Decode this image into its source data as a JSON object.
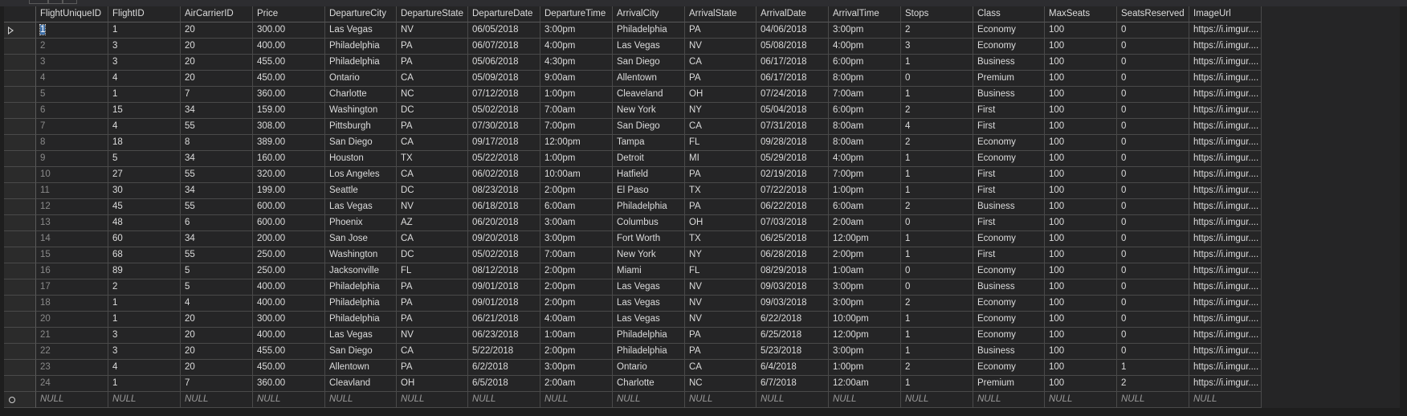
{
  "columns": [
    "FlightUniqueID",
    "FlightID",
    "AirCarrierID",
    "Price",
    "DepartureCity",
    "DepartureState",
    "DepartureDate",
    "DepartureTime",
    "ArrivalCity",
    "ArrivalState",
    "ArrivalDate",
    "ArrivalTime",
    "Stops",
    "Class",
    "MaxSeats",
    "SeatsReserved",
    "ImageUrl"
  ],
  "rows": [
    [
      "1",
      "1",
      "20",
      "300.00",
      "Las Vegas",
      "NV",
      "06/05/2018",
      "3:00pm",
      "Philadelphia",
      "PA",
      "04/06/2018",
      "3:00pm",
      "2",
      "Economy",
      "100",
      "0",
      "https://i.imgur...."
    ],
    [
      "2",
      "3",
      "20",
      "400.00",
      "Philadelphia",
      "PA",
      "06/07/2018",
      "4:00pm",
      "Las Vegas",
      "NV",
      "05/08/2018",
      "4:00pm",
      "3",
      "Economy",
      "100",
      "0",
      "https://i.imgur...."
    ],
    [
      "3",
      "3",
      "20",
      "455.00",
      "Philadelphia",
      "PA",
      "05/06/2018",
      "4:30pm",
      "San Diego",
      "CA",
      "06/17/2018",
      "6:00pm",
      "1",
      "Business",
      "100",
      "0",
      "https://i.imgur...."
    ],
    [
      "4",
      "4",
      "20",
      "450.00",
      "Ontario",
      "CA",
      "05/09/2018",
      "9:00am",
      "Allentown",
      "PA",
      "06/17/2018",
      "8:00pm",
      "0",
      "Premium",
      "100",
      "0",
      "https://i.imgur...."
    ],
    [
      "5",
      "1",
      "7",
      "360.00",
      "Charlotte",
      "NC",
      "07/12/2018",
      "1:00pm",
      "Cleaveland",
      "OH",
      "07/24/2018",
      "7:00am",
      "1",
      "Business",
      "100",
      "0",
      "https://i.imgur...."
    ],
    [
      "6",
      "15",
      "34",
      "159.00",
      "Washington",
      "DC",
      "05/02/2018",
      "7:00am",
      "New York",
      "NY",
      "05/04/2018",
      "6:00pm",
      "2",
      "First",
      "100",
      "0",
      "https://i.imgur...."
    ],
    [
      "7",
      "4",
      "55",
      "308.00",
      "Pittsburgh",
      "PA",
      "07/30/2018",
      "7:00pm",
      "San Diego",
      "CA",
      "07/31/2018",
      "8:00am",
      "4",
      "First",
      "100",
      "0",
      "https://i.imgur...."
    ],
    [
      "8",
      "18",
      "8",
      "389.00",
      "San Diego",
      "CA",
      "09/17/2018",
      "12:00pm",
      "Tampa",
      "FL",
      "09/28/2018",
      "8:00am",
      "2",
      "Economy",
      "100",
      "0",
      "https://i.imgur...."
    ],
    [
      "9",
      "5",
      "34",
      "160.00",
      "Houston",
      "TX",
      "05/22/2018",
      "1:00pm",
      "Detroit",
      "MI",
      "05/29/2018",
      "4:00pm",
      "1",
      "Economy",
      "100",
      "0",
      "https://i.imgur...."
    ],
    [
      "10",
      "27",
      "55",
      "320.00",
      "Los Angeles",
      "CA",
      "06/02/2018",
      "10:00am",
      "Hatfield",
      "PA",
      "02/19/2018",
      "7:00pm",
      "1",
      "First",
      "100",
      "0",
      "https://i.imgur...."
    ],
    [
      "11",
      "30",
      "34",
      "199.00",
      "Seattle",
      "DC",
      "08/23/2018",
      "2:00pm",
      "El Paso",
      "TX",
      "07/22/2018",
      "1:00pm",
      "1",
      "First",
      "100",
      "0",
      "https://i.imgur...."
    ],
    [
      "12",
      "45",
      "55",
      "600.00",
      "Las Vegas",
      "NV",
      "06/18/2018",
      "6:00am",
      "Philadelphia",
      "PA",
      "06/22/2018",
      "6:00am",
      "2",
      "Business",
      "100",
      "0",
      "https://i.imgur...."
    ],
    [
      "13",
      "48",
      "6",
      "600.00",
      "Phoenix",
      "AZ",
      "06/20/2018",
      "3:00am",
      "Columbus",
      "OH",
      "07/03/2018",
      "2:00am",
      "0",
      "First",
      "100",
      "0",
      "https://i.imgur...."
    ],
    [
      "14",
      "60",
      "34",
      "200.00",
      "San Jose",
      "CA",
      "09/20/2018",
      "3:00pm",
      "Fort Worth",
      "TX",
      "06/25/2018",
      "12:00pm",
      "1",
      "Economy",
      "100",
      "0",
      "https://i.imgur...."
    ],
    [
      "15",
      "68",
      "55",
      "250.00",
      "Washington",
      "DC",
      "05/02/2018",
      "7:00am",
      "New York",
      "NY",
      "06/28/2018",
      "2:00pm",
      "1",
      "First",
      "100",
      "0",
      "https://i.imgur...."
    ],
    [
      "16",
      "89",
      "5",
      "250.00",
      "Jacksonville",
      "FL",
      "08/12/2018",
      "2:00pm",
      "Miami",
      "FL",
      "08/29/2018",
      "1:00am",
      "0",
      "Economy",
      "100",
      "0",
      "https://i.imgur...."
    ],
    [
      "17",
      "2",
      "5",
      "400.00",
      "Philadelphia",
      "PA",
      "09/01/2018",
      "2:00pm",
      "Las Vegas",
      "NV",
      "09/03/2018",
      "3:00pm",
      "0",
      "Business",
      "100",
      "0",
      "https://i.imgur...."
    ],
    [
      "18",
      "1",
      "4",
      "400.00",
      "Philadelphia",
      "PA",
      "09/01/2018",
      "2:00pm",
      "Las Vegas",
      "NV",
      "09/03/2018",
      "3:00pm",
      "2",
      "Economy",
      "100",
      "0",
      "https://i.imgur...."
    ],
    [
      "20",
      "1",
      "20",
      "300.00",
      "Philadelphia",
      "PA",
      "06/21/2018",
      "4:00am",
      "Las Vegas",
      "NV",
      "6/22/2018",
      "10:00pm",
      "1",
      "Economy",
      "100",
      "0",
      "https://i.imgur...."
    ],
    [
      "21",
      "3",
      "20",
      "400.00",
      "Las Vegas",
      "NV",
      "06/23/2018",
      "1:00am",
      "Philadelphia",
      "PA",
      "6/25/2018",
      "12:00pm",
      "1",
      "Economy",
      "100",
      "0",
      "https://i.imgur...."
    ],
    [
      "22",
      "3",
      "20",
      "455.00",
      "San Diego",
      "CA",
      "5/22/2018",
      "2:00pm",
      "Philadelphia",
      "PA",
      "5/23/2018",
      "3:00pm",
      "1",
      "Business",
      "100",
      "0",
      "https://i.imgur...."
    ],
    [
      "23",
      "4",
      "20",
      "450.00",
      "Allentown",
      "PA",
      "6/2/2018",
      "3:00pm",
      "Ontario",
      "CA",
      "6/4/2018",
      "1:00pm",
      "2",
      "Economy",
      "100",
      "1",
      "https://i.imgur...."
    ],
    [
      "24",
      "1",
      "7",
      "360.00",
      "Cleavland",
      "OH",
      "6/5/2018",
      "2:00am",
      "Charlotte",
      "NC",
      "6/7/2018",
      "12:00am",
      "1",
      "Premium",
      "100",
      "2",
      "https://i.imgur...."
    ]
  ],
  "null_label": "NULL",
  "colors": {
    "background": "#1e1e1e",
    "grid_line": "#4a4a4a",
    "text": "#dcdcdc",
    "selection": "#3d6ea7"
  },
  "icons": {
    "current_row": "triangle-right-icon",
    "new_row": "circle-new-row-icon"
  }
}
